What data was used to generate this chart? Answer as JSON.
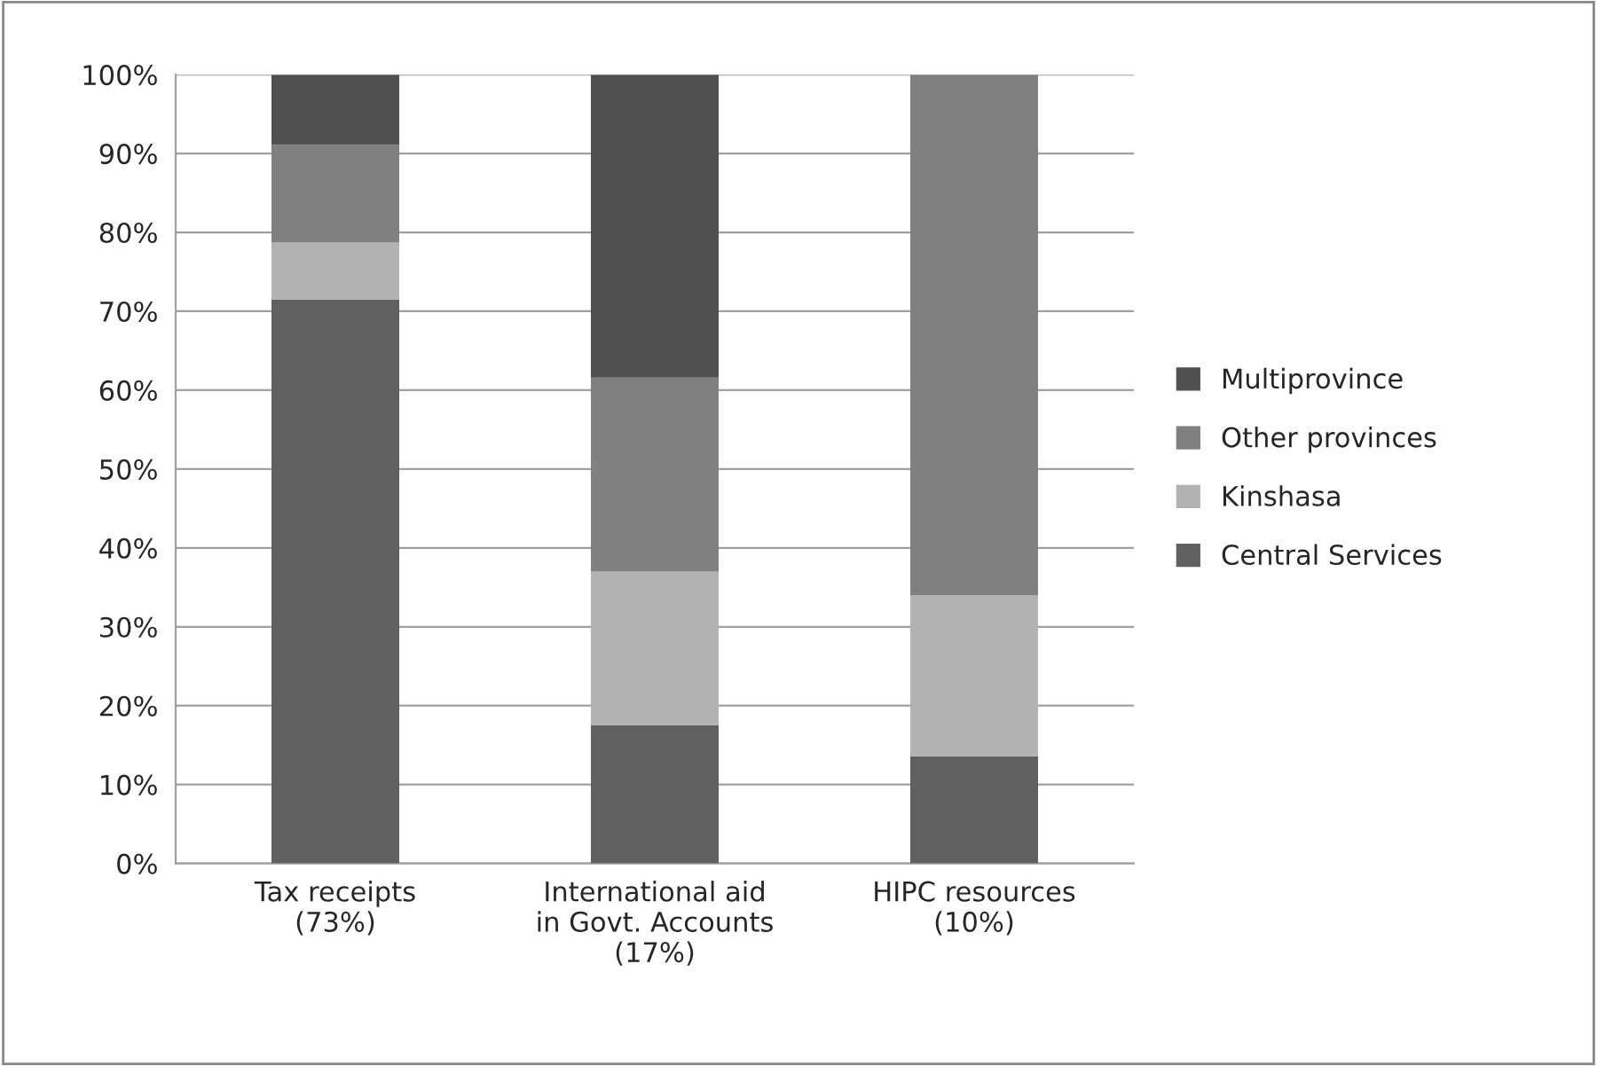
{
  "chart_data": {
    "type": "bar",
    "stacked": true,
    "categories": [
      "Tax receipts\n(73%)",
      "International aid\nin Govt. Accounts\n(17%)",
      "HIPC resources\n(10%)"
    ],
    "series": [
      {
        "name": "Central Services",
        "color": "#606060",
        "values": [
          71.5,
          17.5,
          13.6
        ]
      },
      {
        "name": "Kinshasa",
        "color": "#b2b2b2",
        "values": [
          7.2,
          19.5,
          20.4
        ]
      },
      {
        "name": "Other provinces",
        "color": "#808080",
        "values": [
          12.4,
          24.6,
          66.0
        ]
      },
      {
        "name": "Multiprovince",
        "color": "#505050",
        "values": [
          8.9,
          38.4,
          null
        ]
      }
    ],
    "ylim": [
      0,
      100
    ],
    "yticks": [
      {
        "value": 0,
        "label": "0%"
      },
      {
        "value": 10,
        "label": "10%"
      },
      {
        "value": 20,
        "label": "20%"
      },
      {
        "value": 30,
        "label": "30%"
      },
      {
        "value": 40,
        "label": "40%"
      },
      {
        "value": 50,
        "label": "50%"
      },
      {
        "value": 60,
        "label": "60%"
      },
      {
        "value": 70,
        "label": "70%"
      },
      {
        "value": 80,
        "label": "80%"
      },
      {
        "value": 90,
        "label": "90%"
      },
      {
        "value": 100,
        "label": "100%"
      }
    ],
    "grid": "y",
    "legend": "right"
  }
}
